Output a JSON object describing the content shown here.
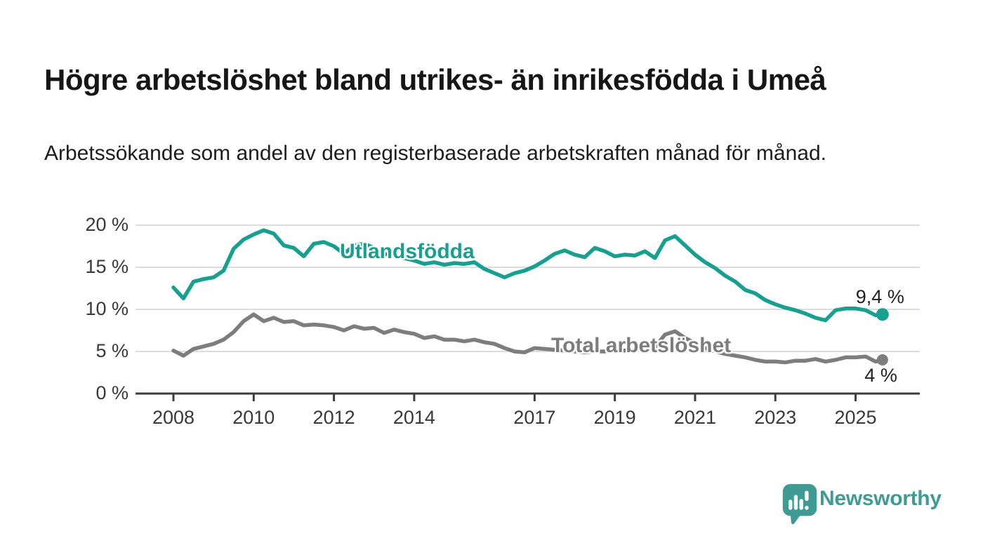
{
  "header": {
    "title": "Högre arbetslöshet bland utrikes- än inrikesfödda i Umeå",
    "subtitle": "Arbetssökande som andel av den registerbaserade arbetskraften månad för månad."
  },
  "chart_data": {
    "type": "line",
    "unit": "%",
    "grid": "horizontal-only",
    "legend_position": "inline-labels-on-lines",
    "ylim": [
      0,
      20
    ],
    "y_ticks": [
      0,
      5,
      10,
      15,
      20
    ],
    "y_tick_labels": [
      "0 %",
      "5 %",
      "10 %",
      "15 %",
      "20 %"
    ],
    "x_ticks": [
      2008,
      2010,
      2012,
      2014,
      2017,
      2019,
      2021,
      2023,
      2025
    ],
    "x_tick_labels": [
      "2008",
      "2010",
      "2012",
      "2014",
      "2017",
      "2019",
      "2021",
      "2023",
      "2025"
    ],
    "x": [
      2008,
      2008.25,
      2008.5,
      2008.75,
      2009,
      2009.25,
      2009.5,
      2009.75,
      2010,
      2010.25,
      2010.5,
      2010.75,
      2011,
      2011.25,
      2011.5,
      2011.75,
      2012,
      2012.25,
      2012.5,
      2012.75,
      2013,
      2013.25,
      2013.5,
      2013.75,
      2014,
      2014.25,
      2014.5,
      2014.75,
      2015,
      2015.25,
      2015.5,
      2015.75,
      2016,
      2016.25,
      2016.5,
      2016.75,
      2017,
      2017.25,
      2017.5,
      2017.75,
      2018,
      2018.25,
      2018.5,
      2018.75,
      2019,
      2019.25,
      2019.5,
      2019.75,
      2020,
      2020.25,
      2020.5,
      2020.75,
      2021,
      2021.25,
      2021.5,
      2021.75,
      2022,
      2022.25,
      2022.5,
      2022.75,
      2023,
      2023.25,
      2023.5,
      2023.75,
      2024,
      2024.25,
      2024.5,
      2024.75,
      2025,
      2025.25,
      2025.5,
      2025.67
    ],
    "series": [
      {
        "name": "Utlandsfödda",
        "color": "#17a08f",
        "end_label": "9,4 %",
        "end_value": 9.4,
        "values": [
          12.6,
          11.3,
          13.3,
          13.6,
          13.8,
          14.6,
          17.2,
          18.3,
          18.9,
          19.4,
          19.0,
          17.6,
          17.3,
          16.3,
          17.8,
          18.0,
          17.5,
          16.6,
          17.6,
          17.8,
          17.3,
          16.6,
          16.4,
          16.1,
          15.8,
          15.4,
          15.6,
          15.3,
          15.5,
          15.4,
          15.6,
          14.8,
          14.3,
          13.8,
          14.3,
          14.6,
          15.1,
          15.8,
          16.6,
          17.0,
          16.5,
          16.2,
          17.3,
          16.9,
          16.3,
          16.5,
          16.4,
          16.9,
          16.1,
          18.2,
          18.7,
          17.6,
          16.5,
          15.6,
          14.9,
          14.0,
          13.3,
          12.3,
          11.9,
          11.1,
          10.6,
          10.2,
          9.9,
          9.5,
          9.0,
          8.7,
          9.9,
          10.1,
          10.1,
          9.9,
          9.3,
          9.4
        ]
      },
      {
        "name": "Total arbetslöshet",
        "color": "#7d7d7d",
        "end_label": "4 %",
        "end_value": 4.0,
        "values": [
          5.1,
          4.5,
          5.3,
          5.6,
          5.9,
          6.4,
          7.3,
          8.6,
          9.4,
          8.6,
          9.0,
          8.5,
          8.6,
          8.1,
          8.2,
          8.1,
          7.9,
          7.5,
          8.0,
          7.7,
          7.8,
          7.2,
          7.6,
          7.3,
          7.1,
          6.6,
          6.8,
          6.4,
          6.4,
          6.2,
          6.4,
          6.1,
          5.9,
          5.4,
          5.0,
          4.9,
          5.4,
          5.3,
          5.2,
          5.1,
          5.0,
          4.9,
          5.0,
          5.0,
          5.1,
          5.1,
          5.2,
          5.3,
          5.5,
          7.0,
          7.4,
          6.6,
          6.0,
          5.4,
          5.0,
          4.7,
          4.5,
          4.3,
          4.0,
          3.8,
          3.8,
          3.7,
          3.9,
          3.9,
          4.1,
          3.8,
          4.0,
          4.3,
          4.3,
          4.4,
          3.8,
          4.0
        ]
      }
    ],
    "axis_color": "#3d3d3d",
    "gridline_color": "#dcdcdc"
  },
  "branding": {
    "logo_text": "Newsworthy",
    "logo_color": "#3f9b93",
    "logo_icon": "speech-bubble-bar-chart-icon"
  }
}
